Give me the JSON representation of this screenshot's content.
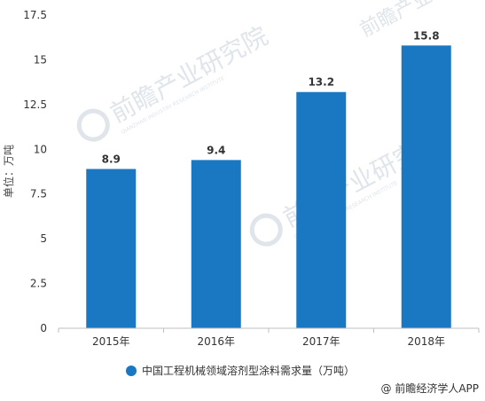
{
  "chart_data": {
    "type": "bar",
    "title": "",
    "categories": [
      "2015年",
      "2016年",
      "2017年",
      "2018年"
    ],
    "series": [
      {
        "name": "中国工程机械领域溶剂型涂料需求量（万吨）",
        "values": [
          8.9,
          9.4,
          13.2,
          15.8
        ],
        "color": "#1a78c2"
      }
    ],
    "data_labels": [
      "8.9",
      "9.4",
      "13.2",
      "15.8"
    ],
    "ylabel": "单位：万吨",
    "xlabel": "",
    "ylim": [
      0,
      17.5
    ],
    "yticks": [
      "0",
      "2.5",
      "5",
      "7.5",
      "10",
      "12.5",
      "15",
      "17.5"
    ],
    "grid": false,
    "legend_position": "bottom-center"
  },
  "source": "@ 前瞻经济学人APP",
  "watermark": {
    "text": "前瞻产业研究院",
    "subtext": "QIANZHAN INDUSTRY RESEARCH INSTITUTE"
  }
}
